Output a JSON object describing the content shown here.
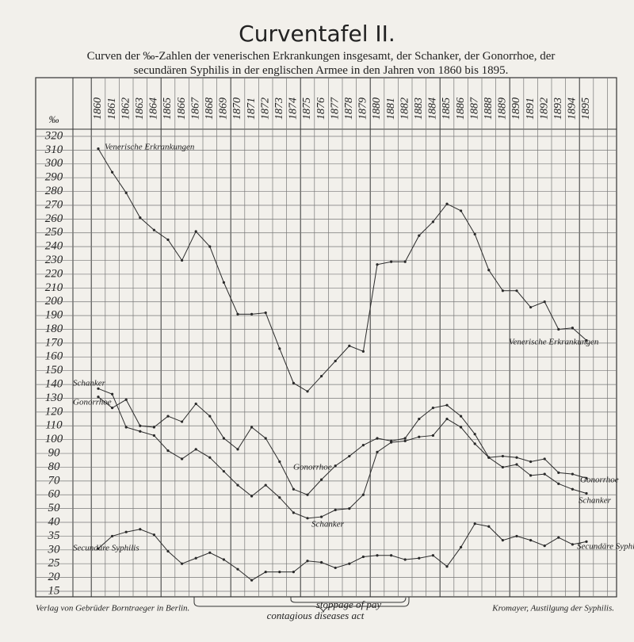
{
  "chart_data": {
    "type": "line",
    "title": "Curventafel II.",
    "subtitle": "Curven der ‰-Zahlen der venerischen Erkrankungen insgesamt, der Schanker, der Gonorrhoe, der secundären Syphilis in der englischen Armee in den Jahren von 1860 bis 1895.",
    "ylabel": "‰",
    "categories": [
      "1860",
      "1861",
      "1862",
      "1863",
      "1864",
      "1865",
      "1866",
      "1867",
      "1868",
      "1869",
      "1870",
      "1871",
      "1872",
      "1873",
      "1874",
      "1875",
      "1876",
      "1877",
      "1878",
      "1879",
      "1880",
      "1881",
      "1882",
      "1883",
      "1884",
      "1885",
      "1886",
      "1887",
      "1888",
      "1889",
      "1890",
      "1891",
      "1892",
      "1893",
      "1894",
      "1895"
    ],
    "series": [
      {
        "name": "Venerische Erkrankungen",
        "color": "#2a2a2a",
        "values": [
          311,
          294,
          279,
          261,
          252,
          245,
          230,
          251,
          240,
          214,
          191,
          191,
          192,
          166,
          141,
          135,
          146,
          157,
          168,
          164,
          227,
          229,
          229,
          248,
          258,
          271,
          266,
          249,
          223,
          208,
          208,
          196,
          200,
          180,
          181,
          172
        ]
      },
      {
        "name": "Schanker",
        "color": "#2a2a2a",
        "values": [
          137,
          133,
          109,
          106,
          103,
          92,
          86,
          93,
          87,
          77,
          67,
          59,
          67,
          58,
          47,
          43,
          44,
          49,
          50,
          60,
          91,
          98,
          99,
          102,
          103,
          115,
          109,
          97,
          87,
          80,
          82,
          74,
          75,
          68,
          64,
          61
        ]
      },
      {
        "name": "Gonorrhoe",
        "color": "#2a2a2a",
        "values": [
          131,
          123,
          129,
          110,
          109,
          117,
          113,
          126,
          117,
          101,
          93,
          109,
          101,
          84,
          64,
          60,
          71,
          81,
          88,
          96,
          101,
          99,
          101,
          115,
          123,
          125,
          117,
          104,
          87,
          88,
          87,
          84,
          86,
          76,
          75,
          72
        ]
      },
      {
        "name": "Secundäre Syphilis",
        "color": "#2a2a2a",
        "values": [
          30.5,
          35,
          36.5,
          37.5,
          35.5,
          29.5,
          25,
          27,
          29,
          26.5,
          23,
          19,
          22,
          22,
          22,
          26,
          25.5,
          23.5,
          25,
          27.5,
          28,
          28,
          26.5,
          27,
          28,
          24,
          31,
          39.5,
          38.5,
          33.5,
          35,
          33.5,
          31.5,
          34.5,
          32,
          33
        ]
      }
    ],
    "ylim": [
      15,
      320
    ],
    "yticks": [
      320,
      310,
      300,
      290,
      280,
      270,
      260,
      250,
      240,
      230,
      220,
      210,
      200,
      190,
      180,
      170,
      160,
      150,
      140,
      130,
      120,
      110,
      100,
      90,
      80,
      70,
      60,
      50,
      40,
      35,
      30,
      25,
      20,
      15
    ],
    "grid": true,
    "annotations": [
      "stoppage of pay",
      "contagious diseases act"
    ],
    "footer_left": "Verlag von Gebrüder Borntraeger in Berlin.",
    "footer_right": "Kromayer, Austilgung der Syphilis."
  }
}
